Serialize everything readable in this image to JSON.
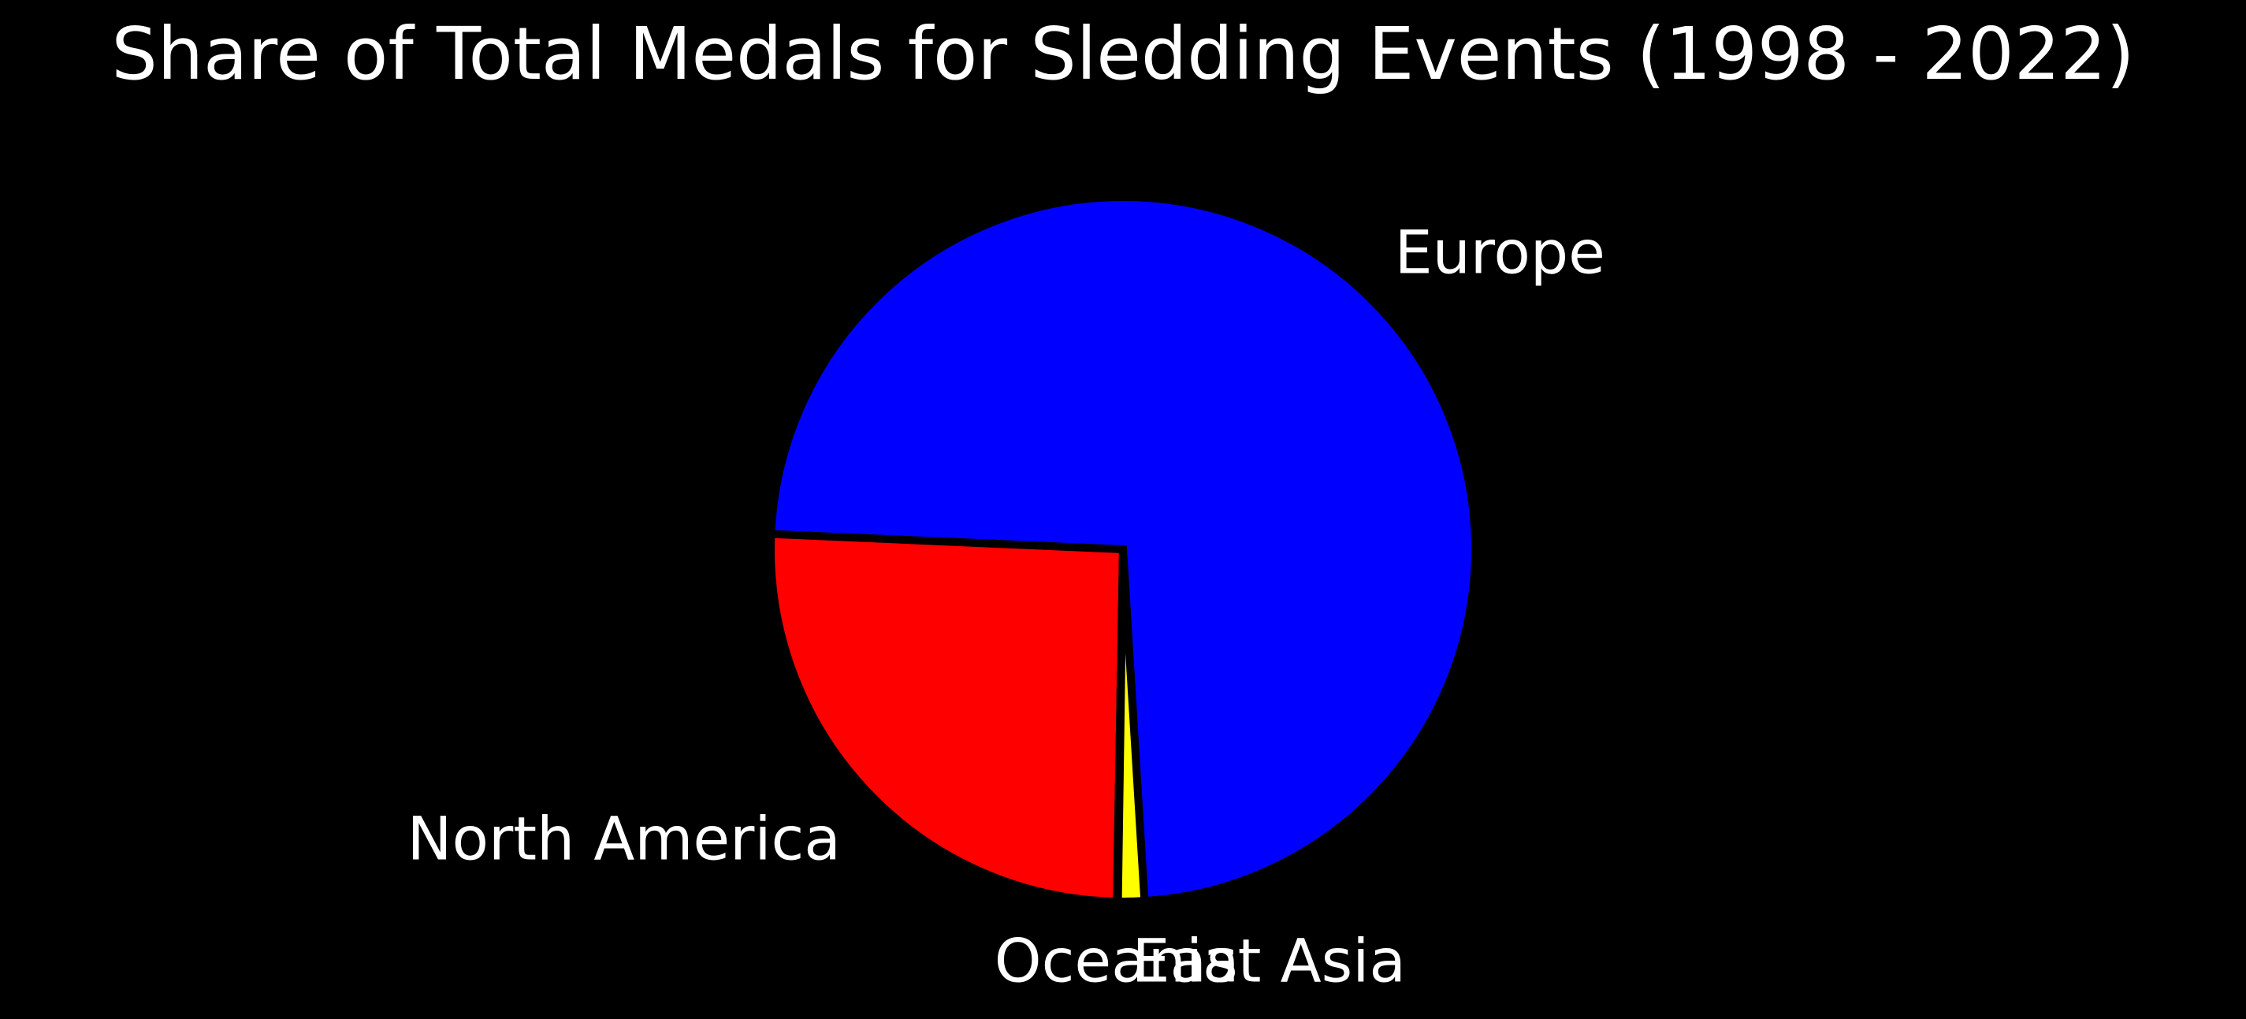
{
  "chart_data": {
    "type": "pie",
    "title": "Share of Total Medals for Sledding Events (1998 - 2022)",
    "slices": [
      {
        "label": "Europe",
        "value": 73.3,
        "color": "#0000ff"
      },
      {
        "label": "North America",
        "value": 25.4,
        "color": "#ff0000"
      },
      {
        "label": "Oceania",
        "value": 0.05,
        "color": "#ffffff"
      },
      {
        "label": "East Asia",
        "value": 1.2,
        "color": "#ffff00"
      }
    ],
    "start_angle_deg": -86.5,
    "direction": "counterclockwise",
    "edge_color": "#000000",
    "background": "#000000",
    "legend": "none"
  }
}
